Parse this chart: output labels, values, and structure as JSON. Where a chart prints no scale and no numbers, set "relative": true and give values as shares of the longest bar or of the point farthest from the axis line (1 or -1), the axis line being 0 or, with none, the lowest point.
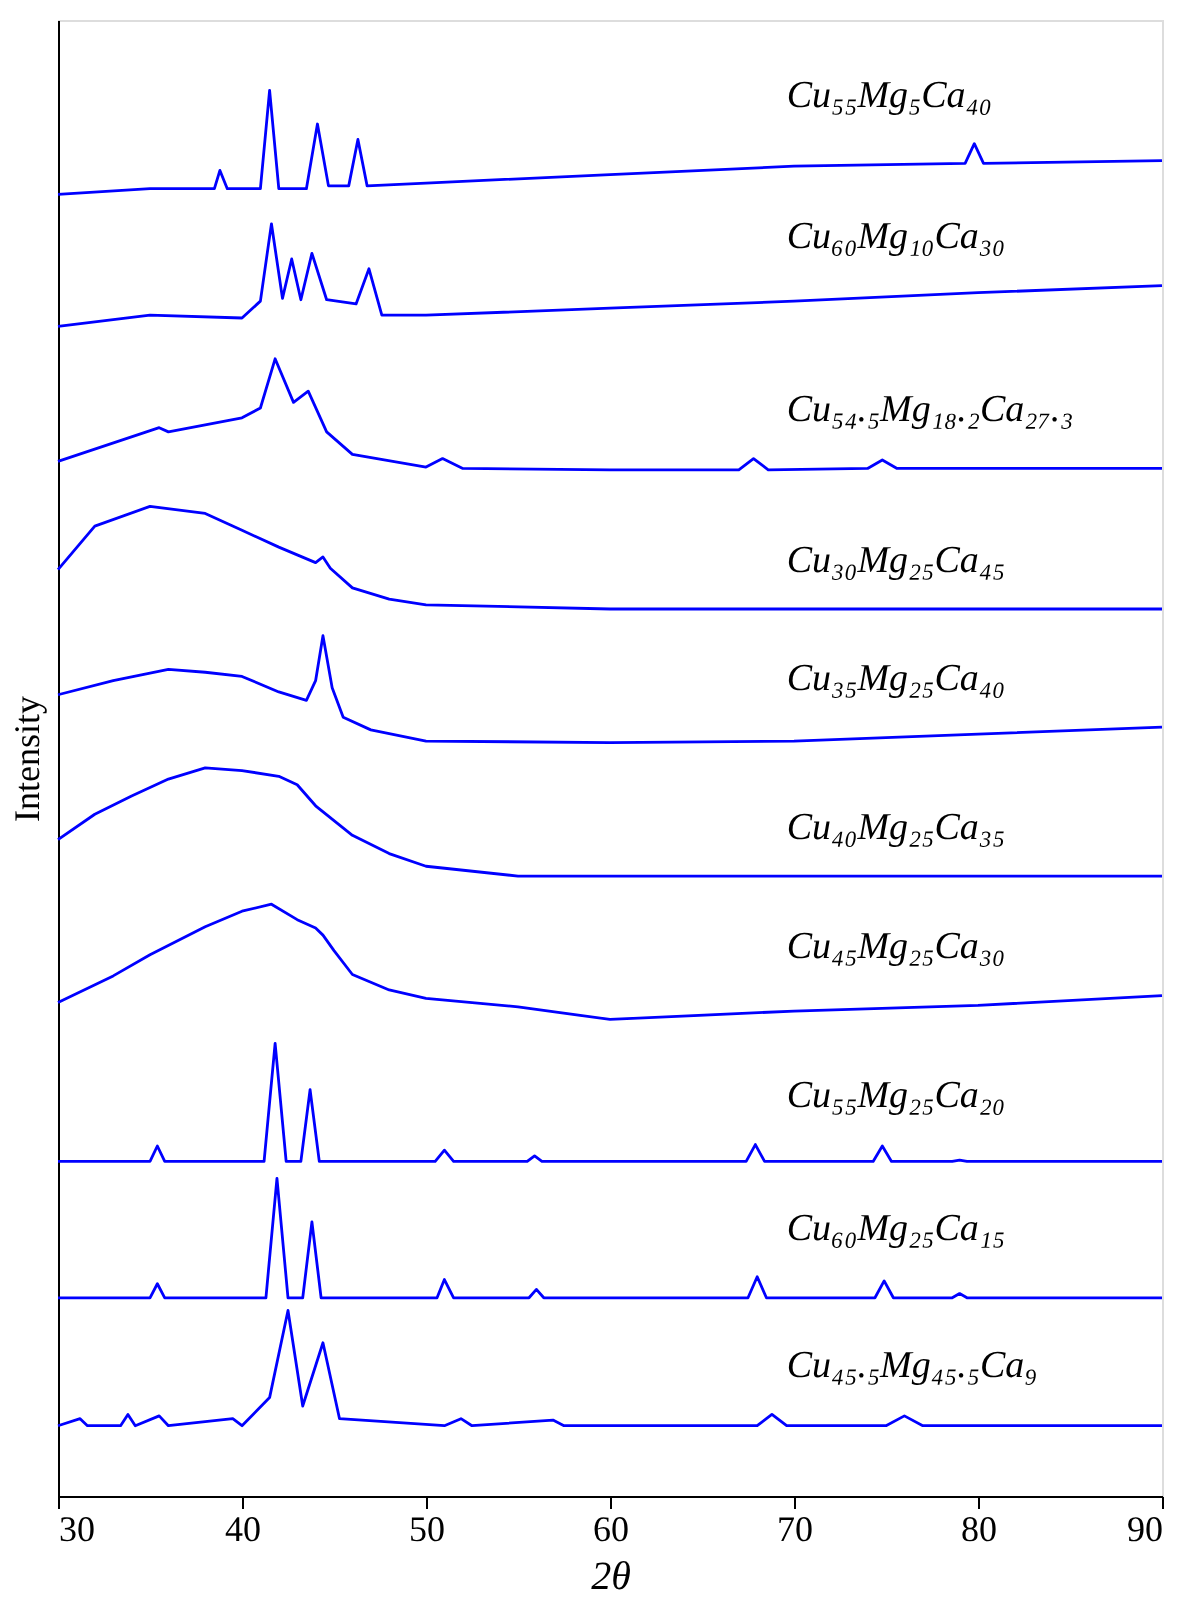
{
  "chart_data": {
    "type": "line",
    "relative": true,
    "xlabel": "2θ",
    "ylabel": "Intensity",
    "xlim": [
      30,
      90
    ],
    "xticks": [
      30,
      40,
      50,
      60,
      70,
      80,
      90
    ],
    "legend": false,
    "grid": false,
    "marker": "none",
    "line_style": "solid",
    "series": [
      {
        "name": "Cu₅₅Mg₅Ca₄₀",
        "color": "#0000ff",
        "x": [
          30,
          35,
          38.5,
          38.8,
          39.2,
          41,
          41.5,
          42,
          43.5,
          44.1,
          44.7,
          45.8,
          46.3,
          46.8,
          50,
          60,
          70,
          79.3,
          79.8,
          80.3,
          90
        ],
        "values": [
          0.926,
          0.93,
          0.93,
          0.943,
          0.93,
          0.93,
          1.0,
          0.93,
          0.93,
          0.976,
          0.932,
          0.932,
          0.965,
          0.932,
          0.934,
          0.94,
          0.946,
          0.948,
          0.962,
          0.948,
          0.95
        ]
      },
      {
        "name": "Cu₆₀Mg₁₀Ca₃₀",
        "color": "#0000ff",
        "x": [
          30,
          35,
          40,
          41,
          41.6,
          42.2,
          42.7,
          43.2,
          43.8,
          44.6,
          46.2,
          46.9,
          47.6,
          50,
          60,
          70,
          80,
          90
        ],
        "values": [
          0.832,
          0.84,
          0.838,
          0.85,
          0.905,
          0.852,
          0.88,
          0.851,
          0.884,
          0.851,
          0.848,
          0.873,
          0.84,
          0.84,
          0.845,
          0.85,
          0.856,
          0.861
        ]
      },
      {
        "name": "Cu₅₄.₅Mg₁₈.₂Ca₂₇.₃",
        "color": "#0000ff",
        "x": [
          30,
          35.5,
          36,
          40,
          41,
          41.8,
          42.8,
          43.6,
          44.6,
          46,
          50,
          50.9,
          52,
          60,
          67,
          67.8,
          68.6,
          74,
          74.8,
          75.6,
          90
        ],
        "values": [
          0.736,
          0.76,
          0.757,
          0.767,
          0.774,
          0.809,
          0.778,
          0.786,
          0.757,
          0.741,
          0.732,
          0.738,
          0.731,
          0.73,
          0.73,
          0.738,
          0.73,
          0.731,
          0.737,
          0.731,
          0.731
        ]
      },
      {
        "name": "Cu₃₀Mg₂₅Ca₄₅",
        "color": "#0000ff",
        "x": [
          30,
          32,
          35,
          38,
          40,
          42,
          44,
          44.4,
          44.8,
          46,
          48,
          50,
          60,
          70,
          80,
          90
        ],
        "values": [
          0.659,
          0.69,
          0.704,
          0.699,
          0.687,
          0.675,
          0.664,
          0.668,
          0.66,
          0.646,
          0.638,
          0.634,
          0.631,
          0.631,
          0.631,
          0.631
        ]
      },
      {
        "name": "Cu₃₅Mg₂₅Ca₄₀",
        "color": "#0000ff",
        "x": [
          30,
          33,
          36,
          38,
          40,
          42,
          43.5,
          44,
          44.4,
          44.9,
          45.5,
          47,
          50,
          60,
          70,
          80,
          90
        ],
        "values": [
          0.57,
          0.58,
          0.588,
          0.586,
          0.583,
          0.572,
          0.566,
          0.58,
          0.612,
          0.575,
          0.554,
          0.545,
          0.537,
          0.536,
          0.537,
          0.542,
          0.547
        ]
      },
      {
        "name": "Cu₄₀Mg₂₅Ca₃₅",
        "color": "#0000ff",
        "x": [
          30,
          32,
          34,
          36,
          38,
          40,
          42,
          43,
          44,
          46,
          48,
          50,
          55,
          60,
          70,
          80,
          90
        ],
        "values": [
          0.467,
          0.485,
          0.498,
          0.51,
          0.518,
          0.516,
          0.512,
          0.506,
          0.491,
          0.47,
          0.457,
          0.448,
          0.441,
          0.441,
          0.441,
          0.441,
          0.441
        ]
      },
      {
        "name": "Cu₄₅Mg₂₅Ca₃₀",
        "color": "#0000ff",
        "x": [
          30,
          33,
          35,
          38,
          40,
          41.6,
          43,
          44,
          44.4,
          45,
          46,
          48,
          50,
          55,
          60,
          70,
          80,
          90
        ],
        "values": [
          0.351,
          0.37,
          0.385,
          0.405,
          0.416,
          0.421,
          0.41,
          0.404,
          0.399,
          0.388,
          0.371,
          0.36,
          0.354,
          0.348,
          0.339,
          0.345,
          0.349,
          0.356
        ]
      },
      {
        "name": "Cu₅₅Mg₂₅Ca₂₀",
        "color": "#0000ff",
        "x": [
          30,
          35,
          35.4,
          35.8,
          41.2,
          41.8,
          42.4,
          43.2,
          43.7,
          44.2,
          50.5,
          51,
          51.5,
          55.5,
          55.9,
          56.3,
          67.4,
          67.9,
          68.4,
          74.3,
          74.8,
          75.3,
          78.6,
          79,
          79.4,
          90
        ],
        "values": [
          0.238,
          0.238,
          0.249,
          0.238,
          0.238,
          0.322,
          0.238,
          0.238,
          0.289,
          0.238,
          0.238,
          0.246,
          0.238,
          0.238,
          0.242,
          0.238,
          0.238,
          0.25,
          0.238,
          0.238,
          0.249,
          0.238,
          0.238,
          0.239,
          0.238,
          0.238
        ]
      },
      {
        "name": "Cu₆₀Mg₂₅Ca₁₅",
        "color": "#0000ff",
        "x": [
          30,
          35,
          35.4,
          35.8,
          41.3,
          41.9,
          42.5,
          43.3,
          43.8,
          44.3,
          50.6,
          51,
          51.5,
          55.6,
          56,
          56.4,
          67.5,
          68,
          68.5,
          74.4,
          74.9,
          75.4,
          78.6,
          79,
          79.4,
          90
        ],
        "values": [
          0.141,
          0.141,
          0.151,
          0.141,
          0.141,
          0.226,
          0.141,
          0.141,
          0.195,
          0.141,
          0.141,
          0.154,
          0.141,
          0.141,
          0.147,
          0.141,
          0.141,
          0.156,
          0.141,
          0.141,
          0.153,
          0.141,
          0.141,
          0.144,
          0.141,
          0.141
        ]
      },
      {
        "name": "Cu₄₅.₅Mg₄₅.₅Ca₉",
        "color": "#0000ff",
        "x": [
          30,
          31.2,
          31.6,
          33.4,
          33.8,
          34.2,
          35.5,
          36,
          39.5,
          40,
          41.5,
          42.5,
          43.3,
          44.4,
          45.3,
          51,
          51.9,
          52.5,
          56.9,
          57.5,
          68,
          68.8,
          69.6,
          75,
          76,
          77,
          90
        ],
        "values": [
          0.05,
          0.055,
          0.05,
          0.05,
          0.058,
          0.05,
          0.057,
          0.05,
          0.055,
          0.05,
          0.07,
          0.132,
          0.064,
          0.109,
          0.055,
          0.05,
          0.055,
          0.05,
          0.054,
          0.05,
          0.05,
          0.058,
          0.05,
          0.05,
          0.057,
          0.05,
          0.05
        ]
      }
    ]
  }
}
